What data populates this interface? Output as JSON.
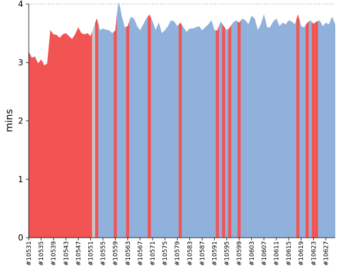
{
  "chart_data": {
    "type": "area",
    "title": "",
    "xlabel": "",
    "ylabel": "mins",
    "ylim": [
      0,
      4
    ],
    "yticks": [
      0,
      1,
      2,
      3,
      4
    ],
    "grid": true,
    "x_start": 10531,
    "x_end": 10628,
    "x_tick_labels": [
      "#10531",
      "#10535",
      "#10539",
      "#10543",
      "#10547",
      "#10551",
      "#10555",
      "#10559",
      "#10563",
      "#10567",
      "#10571",
      "#10575",
      "#10579",
      "#10583",
      "#10587",
      "#10591",
      "#10595",
      "#10599",
      "#10603",
      "#10607",
      "#10611",
      "#10615",
      "#10619",
      "#10623",
      "#10627"
    ],
    "values": [
      3.18,
      3.08,
      3.1,
      2.98,
      3.05,
      2.95,
      2.98,
      3.55,
      3.48,
      3.47,
      3.42,
      3.48,
      3.5,
      3.45,
      3.4,
      3.48,
      3.6,
      3.5,
      3.48,
      3.5,
      3.45,
      3.6,
      3.75,
      3.55,
      3.58,
      3.56,
      3.55,
      3.5,
      3.55,
      4.08,
      3.8,
      3.6,
      3.62,
      3.78,
      3.75,
      3.62,
      3.55,
      3.65,
      3.75,
      3.82,
      3.7,
      3.55,
      3.68,
      3.5,
      3.55,
      3.62,
      3.72,
      3.7,
      3.62,
      3.68,
      3.6,
      3.52,
      3.58,
      3.58,
      3.6,
      3.62,
      3.55,
      3.6,
      3.65,
      3.72,
      3.55,
      3.55,
      3.7,
      3.62,
      3.55,
      3.6,
      3.68,
      3.72,
      3.68,
      3.75,
      3.72,
      3.65,
      3.8,
      3.75,
      3.55,
      3.65,
      3.82,
      3.6,
      3.6,
      3.7,
      3.75,
      3.62,
      3.68,
      3.65,
      3.72,
      3.7,
      3.65,
      3.82,
      3.62,
      3.6,
      3.68,
      3.72,
      3.66,
      3.7,
      3.72,
      3.62,
      3.68,
      3.65,
      3.78,
      3.65
    ],
    "status": [
      "f",
      "f",
      "f",
      "f",
      "f",
      "f",
      "f",
      "f",
      "f",
      "f",
      "f",
      "f",
      "f",
      "f",
      "f",
      "f",
      "f",
      "f",
      "f",
      "f",
      "f",
      "u",
      "f",
      "s",
      "s",
      "s",
      "s",
      "s",
      "f",
      "s",
      "s",
      "s",
      "f",
      "s",
      "s",
      "s",
      "s",
      "s",
      "s",
      "f",
      "s",
      "s",
      "s",
      "s",
      "s",
      "s",
      "s",
      "s",
      "s",
      "f",
      "s",
      "s",
      "s",
      "s",
      "s",
      "s",
      "s",
      "s",
      "s",
      "s",
      "s",
      "f",
      "s",
      "f",
      "s",
      "f",
      "s",
      "s",
      "f",
      "s",
      "s",
      "s",
      "s",
      "s",
      "s",
      "s",
      "s",
      "s",
      "s",
      "s",
      "s",
      "s",
      "s",
      "s",
      "s",
      "s",
      "s",
      "f",
      "s",
      "s",
      "f",
      "s",
      "f",
      "f",
      "s",
      "s",
      "s",
      "s"
    ],
    "colors": {
      "success": "#8fb1db",
      "failure": "#f25353",
      "unstable": "#c8c8c8",
      "grid": "#9a9a9a"
    }
  }
}
